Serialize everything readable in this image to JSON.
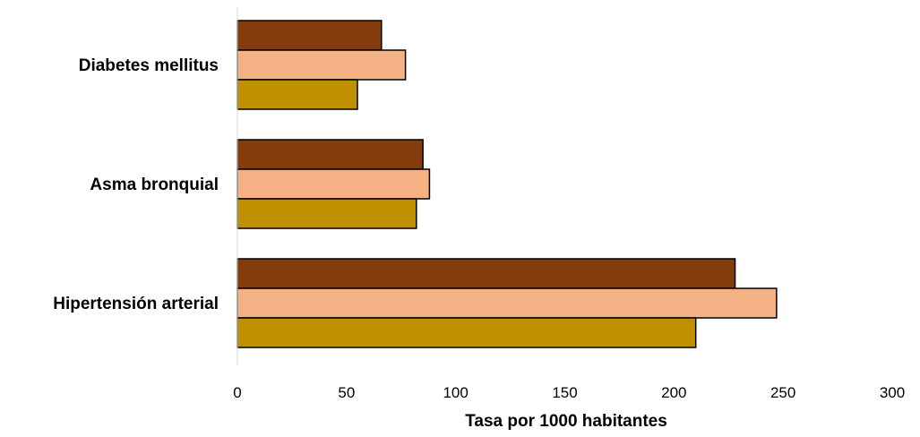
{
  "chart_data": {
    "type": "bar",
    "orientation": "horizontal",
    "categories": [
      "Hipertensión arterial",
      "Asma bronquial",
      "Diabetes mellitus"
    ],
    "series": [
      {
        "values": [
          210,
          82,
          55
        ],
        "color": "#bf9000"
      },
      {
        "values": [
          247,
          88,
          77
        ],
        "color": "#f4b183"
      },
      {
        "values": [
          228,
          85,
          66
        ],
        "color": "#843c0c"
      }
    ],
    "xlabel": "Tasa por 1000 habitantes",
    "ylabel": "",
    "xlim": [
      0,
      300
    ],
    "xticks": [
      "0",
      "50",
      "100",
      "150",
      "200",
      "250",
      "300"
    ],
    "grid": false,
    "legend": "none"
  }
}
